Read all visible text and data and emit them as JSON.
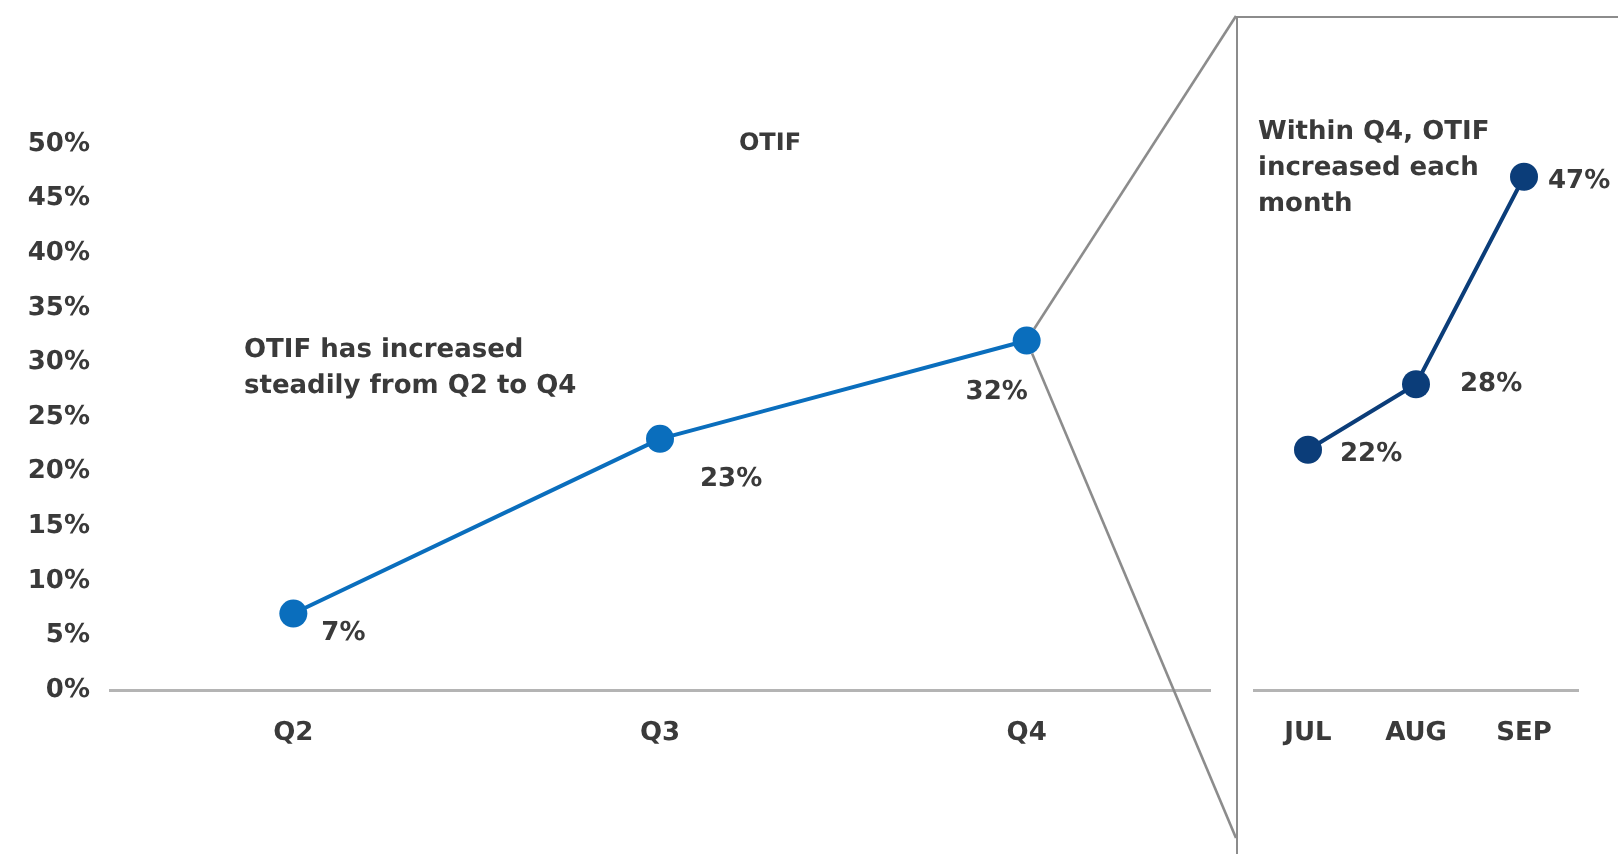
{
  "chart_data": [
    {
      "type": "line",
      "title": "OTIF",
      "categories": [
        "Q2",
        "Q3",
        "Q4"
      ],
      "series": [
        {
          "color": "#0a6ebd",
          "values": [
            7,
            23,
            32
          ],
          "value_labels": [
            "7%",
            "23%",
            "32%"
          ]
        }
      ],
      "ylim": [
        0,
        50
      ],
      "yticks": [
        {
          "value": 0,
          "label": "0%"
        },
        {
          "value": 5,
          "label": "5%"
        },
        {
          "value": 10,
          "label": "10%"
        },
        {
          "value": 15,
          "label": "15%"
        },
        {
          "value": 20,
          "label": "20%"
        },
        {
          "value": 25,
          "label": "25%"
        },
        {
          "value": 30,
          "label": "30%"
        },
        {
          "value": 35,
          "label": "35%"
        },
        {
          "value": 40,
          "label": "40%"
        },
        {
          "value": 45,
          "label": "45%"
        },
        {
          "value": 50,
          "label": "50%"
        }
      ],
      "annotations": [
        "OTIF has increased steadily from Q2 to Q4"
      ],
      "marker": "circle",
      "grid": false,
      "legend": false
    },
    {
      "type": "line",
      "categories": [
        "JUL",
        "AUG",
        "SEP"
      ],
      "series": [
        {
          "color": "#0b3d79",
          "values": [
            22,
            28,
            47
          ],
          "value_labels": [
            "22%",
            "28%",
            "47%"
          ]
        }
      ],
      "ylim": [
        0,
        50
      ],
      "tick_labels": "x",
      "annotations": [
        "Within Q4, OTIF increased each month"
      ],
      "marker": "circle",
      "grid": false,
      "legend": false
    }
  ]
}
